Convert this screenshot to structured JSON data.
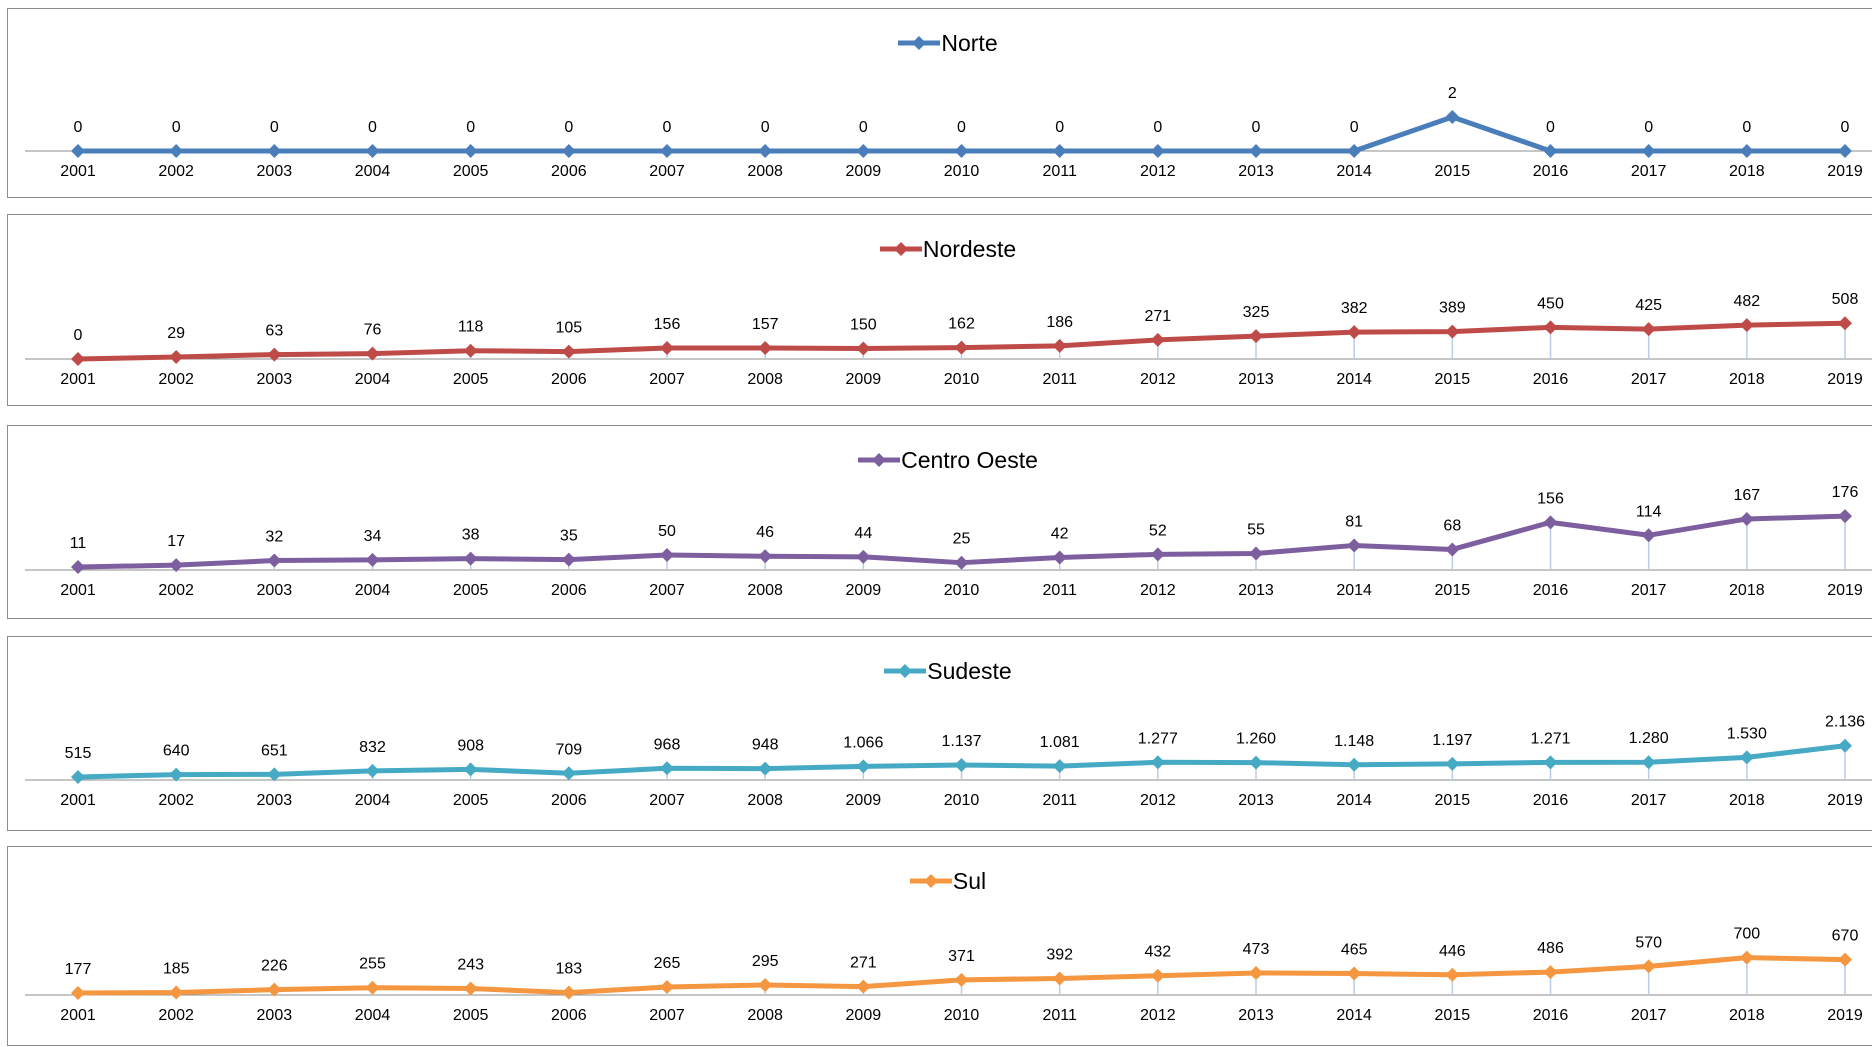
{
  "chart_data": [
    {
      "type": "line",
      "categories": [
        "2001",
        "2002",
        "2003",
        "2004",
        "2005",
        "2006",
        "2007",
        "2008",
        "2009",
        "2010",
        "2011",
        "2012",
        "2013",
        "2014",
        "2015",
        "2016",
        "2017",
        "2018",
        "2019"
      ],
      "series": [
        {
          "name": "Norte",
          "color": "#4a7ebb",
          "values": [
            0,
            0,
            0,
            0,
            0,
            0,
            0,
            0,
            0,
            0,
            0,
            0,
            0,
            0,
            2,
            0,
            0,
            0,
            0
          ],
          "labels": [
            "0",
            "0",
            "0",
            "0",
            "0",
            "0",
            "0",
            "0",
            "0",
            "0",
            "0",
            "0",
            "0",
            "0",
            "2",
            "0",
            "0",
            "0",
            "0"
          ]
        }
      ],
      "legend": "top-center",
      "markers": "diamond",
      "drop_lines": true
    },
    {
      "type": "line",
      "categories": [
        "2001",
        "2002",
        "2003",
        "2004",
        "2005",
        "2006",
        "2007",
        "2008",
        "2009",
        "2010",
        "2011",
        "2012",
        "2013",
        "2014",
        "2015",
        "2016",
        "2017",
        "2018",
        "2019"
      ],
      "series": [
        {
          "name": "Nordeste",
          "color": "#be4b48",
          "values": [
            0,
            29,
            63,
            76,
            118,
            105,
            156,
            157,
            150,
            162,
            186,
            271,
            325,
            382,
            389,
            450,
            425,
            482,
            508
          ],
          "labels": [
            "0",
            "29",
            "63",
            "76",
            "118",
            "105",
            "156",
            "157",
            "150",
            "162",
            "186",
            "271",
            "325",
            "382",
            "389",
            "450",
            "425",
            "482",
            "508"
          ]
        }
      ],
      "legend": "top-center",
      "markers": "diamond",
      "drop_lines": true
    },
    {
      "type": "line",
      "categories": [
        "2001",
        "2002",
        "2003",
        "2004",
        "2005",
        "2006",
        "2007",
        "2008",
        "2009",
        "2010",
        "2011",
        "2012",
        "2013",
        "2014",
        "2015",
        "2016",
        "2017",
        "2018",
        "2019"
      ],
      "series": [
        {
          "name": "Centro Oeste",
          "color": "#7d5fa0",
          "values": [
            11,
            17,
            32,
            34,
            38,
            35,
            50,
            46,
            44,
            25,
            42,
            52,
            55,
            81,
            68,
            156,
            114,
            167,
            176
          ],
          "labels": [
            "11",
            "17",
            "32",
            "34",
            "38",
            "35",
            "50",
            "46",
            "44",
            "25",
            "42",
            "52",
            "55",
            "81",
            "68",
            "156",
            "114",
            "167",
            "176"
          ]
        }
      ],
      "legend": "top-center",
      "markers": "diamond",
      "drop_lines": true
    },
    {
      "type": "line",
      "categories": [
        "2001",
        "2002",
        "2003",
        "2004",
        "2005",
        "2006",
        "2007",
        "2008",
        "2009",
        "2010",
        "2011",
        "2012",
        "2013",
        "2014",
        "2015",
        "2016",
        "2017",
        "2018",
        "2019"
      ],
      "series": [
        {
          "name": "Sudeste",
          "color": "#46aac5",
          "values": [
            515,
            640,
            651,
            832,
            908,
            709,
            968,
            948,
            1066,
            1137,
            1081,
            1277,
            1260,
            1148,
            1197,
            1271,
            1280,
            1530,
            2136
          ],
          "labels": [
            "515",
            "640",
            "651",
            "832",
            "908",
            "709",
            "968",
            "948",
            "1.066",
            "1.137",
            "1.081",
            "1.277",
            "1.260",
            "1.148",
            "1.197",
            "1.271",
            "1.280",
            "1.530",
            "2.136"
          ]
        }
      ],
      "legend": "top-center",
      "markers": "diamond",
      "drop_lines": true
    },
    {
      "type": "line",
      "categories": [
        "2001",
        "2002",
        "2003",
        "2004",
        "2005",
        "2006",
        "2007",
        "2008",
        "2009",
        "2010",
        "2011",
        "2012",
        "2013",
        "2014",
        "2015",
        "2016",
        "2017",
        "2018",
        "2019"
      ],
      "series": [
        {
          "name": "Sul",
          "color": "#f59640",
          "values": [
            177,
            185,
            226,
            255,
            243,
            183,
            265,
            295,
            271,
            371,
            392,
            432,
            473,
            465,
            446,
            486,
            570,
            700,
            670
          ],
          "labels": [
            "177",
            "185",
            "226",
            "255",
            "243",
            "183",
            "265",
            "295",
            "271",
            "371",
            "392",
            "432",
            "473",
            "465",
            "446",
            "486",
            "570",
            "700",
            "670"
          ]
        }
      ],
      "legend": "top-center",
      "markers": "diamond",
      "drop_lines": true
    }
  ]
}
